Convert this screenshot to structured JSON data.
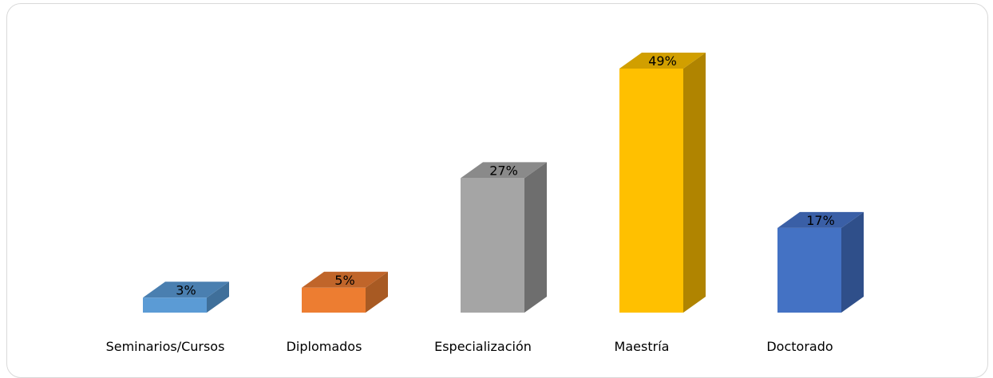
{
  "chart_data": {
    "type": "bar",
    "style": "3d-column",
    "categories": [
      "Seminarios/Cursos",
      "Diplomados",
      "Especialización",
      "Maestría",
      "Doctorado"
    ],
    "values": [
      3,
      5,
      27,
      49,
      17
    ],
    "value_labels": [
      "3%",
      "5%",
      "27%",
      "49%",
      "17%"
    ],
    "colors": [
      "#5b9bd5",
      "#ed7d31",
      "#a5a5a5",
      "#ffc000",
      "#4472c4"
    ],
    "side_colors": [
      "#3f6f9a",
      "#a85a23",
      "#6e6e6e",
      "#b08400",
      "#2f4f8a"
    ],
    "top_colors": [
      "#4a7fb0",
      "#c0652a",
      "#8a8a8a",
      "#d19f00",
      "#3a5fa6"
    ],
    "ylim": [
      0,
      55
    ],
    "grid": false,
    "legend": "none"
  }
}
